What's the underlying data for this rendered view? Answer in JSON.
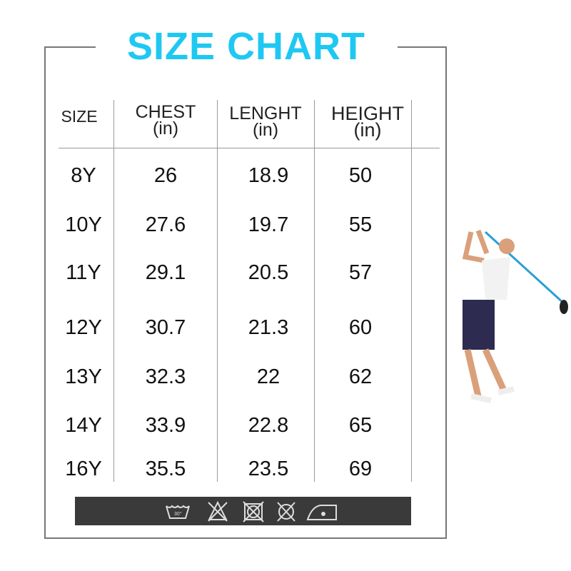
{
  "title": "SIZE CHART",
  "columns": [
    {
      "label": "SIZE",
      "unit": ""
    },
    {
      "label": "CHEST",
      "unit": "(in)"
    },
    {
      "label": "LENGHT",
      "unit": "(in)"
    },
    {
      "label": "HEIGHT",
      "unit": "(in)"
    }
  ],
  "rows": [
    [
      "8Y",
      "26",
      "18.9",
      "50"
    ],
    [
      "10Y",
      "27.6",
      "19.7",
      "55"
    ],
    [
      "11Y",
      "29.1",
      "20.5",
      "57"
    ],
    [
      "12Y",
      "30.7",
      "21.3",
      "60"
    ],
    [
      "13Y",
      "32.3",
      "22",
      "62"
    ],
    [
      "14Y",
      "33.9",
      "22.8",
      "65"
    ],
    [
      "16Y",
      "35.5",
      "23.5",
      "69"
    ]
  ],
  "care_icons": [
    "wash-30-icon",
    "no-bleach-icon",
    "no-tumble-dry-icon",
    "no-dry-clean-icon",
    "iron-low-icon"
  ],
  "colors": {
    "title": "#1ec8f2",
    "care_bar": "#3a3a3a"
  }
}
